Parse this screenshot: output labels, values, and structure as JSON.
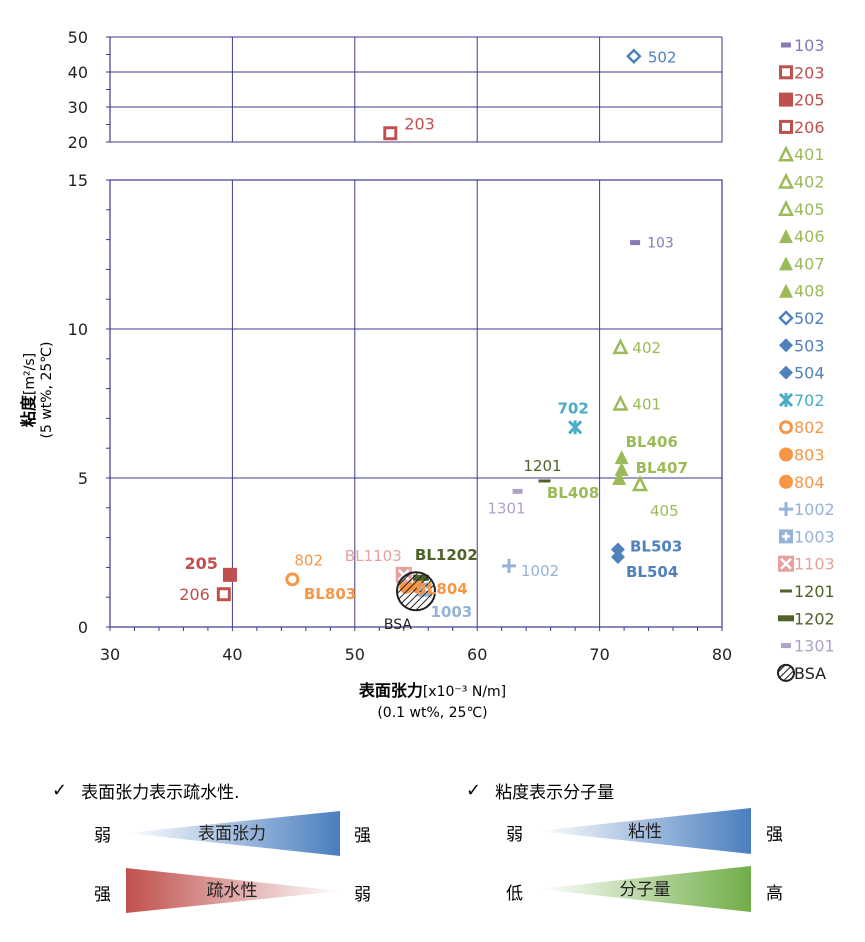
{
  "chart_data": {
    "type": "scatter",
    "y_axis_label_main": "粘度",
    "y_axis_label_unit": "[m²/s]",
    "y_axis_label_cond": "(5 wt%, 25℃)",
    "x_axis_label_main": "表面张力",
    "x_axis_label_unit": "[x10⁻³ N/m]",
    "x_axis_label_cond": "(0.1 wt%, 25℃)",
    "xlim": [
      30,
      80
    ],
    "x_ticks": [
      "30",
      "40",
      "50",
      "60",
      "70",
      "80"
    ],
    "y_lower_lim": [
      0,
      15
    ],
    "y_lower_ticks": [
      "0",
      "5",
      "10",
      "15"
    ],
    "y_upper_lim": [
      20,
      50
    ],
    "y_upper_ticks": [
      "20",
      "30",
      "40",
      "50"
    ],
    "grid": true,
    "legend_position": "right",
    "series": [
      {
        "name": "103",
        "marker": "dash",
        "color": "#8a78b8",
        "x": 72.9,
        "y": 12.9,
        "label": "103"
      },
      {
        "name": "203",
        "marker": "square-open",
        "color": "#c0504d",
        "x": 52.9,
        "y": 22.5,
        "label": "203"
      },
      {
        "name": "205",
        "marker": "square-filled",
        "color": "#c0504d",
        "x": 39.8,
        "y": 1.75,
        "label": "205"
      },
      {
        "name": "206",
        "marker": "square-open",
        "color": "#c0504d",
        "x": 39.3,
        "y": 1.1,
        "label": "206"
      },
      {
        "name": "401",
        "marker": "triangle-open",
        "color": "#9bbb59",
        "x": 71.7,
        "y": 7.5,
        "label": "401"
      },
      {
        "name": "402",
        "marker": "triangle-open",
        "color": "#9bbb59",
        "x": 71.7,
        "y": 9.4,
        "label": "402"
      },
      {
        "name": "405",
        "marker": "triangle-open",
        "color": "#9bbb59",
        "x": 73.3,
        "y": 4.8,
        "label": "405"
      },
      {
        "name": "406",
        "marker": "triangle-filled",
        "color": "#9bbb59",
        "x": 71.8,
        "y": 5.7,
        "label": "BL406"
      },
      {
        "name": "407",
        "marker": "triangle-filled",
        "color": "#9bbb59",
        "x": 71.8,
        "y": 5.3,
        "label": "BL407"
      },
      {
        "name": "408",
        "marker": "triangle-filled",
        "color": "#9bbb59",
        "x": 71.6,
        "y": 5.0,
        "label": "BL408"
      },
      {
        "name": "502",
        "marker": "diamond-open",
        "color": "#4f81bd",
        "x": 72.8,
        "y": 44.5,
        "label": "502"
      },
      {
        "name": "503",
        "marker": "diamond-filled",
        "color": "#4f81bd",
        "x": 71.5,
        "y": 2.6,
        "label": "BL503"
      },
      {
        "name": "504",
        "marker": "diamond-filled",
        "color": "#4f81bd",
        "x": 71.5,
        "y": 2.35,
        "label": "BL504"
      },
      {
        "name": "702",
        "marker": "star",
        "color": "#4bacc6",
        "x": 68.0,
        "y": 6.7,
        "label": "702"
      },
      {
        "name": "802",
        "marker": "circle-open",
        "color": "#f79646",
        "x": 44.9,
        "y": 1.6,
        "label": "802"
      },
      {
        "name": "803",
        "marker": "circle-filled",
        "color": "#f79646",
        "x": 54.2,
        "y": 1.35,
        "label": "BL803"
      },
      {
        "name": "804",
        "marker": "circle-filled",
        "color": "#f79646",
        "x": 55.2,
        "y": 1.35,
        "label": "BL804"
      },
      {
        "name": "1002",
        "marker": "plus",
        "color": "#95b3d7",
        "x": 62.6,
        "y": 2.05,
        "label": "1002"
      },
      {
        "name": "1003",
        "marker": "plus-box",
        "color": "#95b3d7",
        "x": 55.7,
        "y": 1.25,
        "label": "1003"
      },
      {
        "name": "1103",
        "marker": "x-box",
        "color": "#e6a0a0",
        "x": 54.0,
        "y": 1.75,
        "label": "BL1103"
      },
      {
        "name": "1201",
        "marker": "dash-green",
        "color": "#4f6228",
        "x": 65.5,
        "y": 4.9,
        "label": "1201"
      },
      {
        "name": "1202",
        "marker": "dash-green-thick",
        "color": "#4f6228",
        "x": 55.4,
        "y": 1.65,
        "label": "BL1202"
      },
      {
        "name": "1301",
        "marker": "dash",
        "color": "#b2a1c7",
        "x": 63.3,
        "y": 4.55,
        "label": "1301"
      },
      {
        "name": "BSA",
        "marker": "hatched-circle",
        "color": "#222222",
        "x": 55.0,
        "y": 1.2,
        "label": "BSA"
      }
    ]
  },
  "notes": {
    "left": {
      "check": "✓",
      "title": "表面张力表示疏水性.",
      "row1": {
        "left": "弱",
        "middle": "表面张力",
        "right": "强"
      },
      "row2": {
        "left": "强",
        "middle": "疏水性",
        "right": "弱"
      }
    },
    "right": {
      "check": "✓",
      "title": "粘度表示分子量",
      "row1": {
        "left": "弱",
        "middle": "粘性",
        "right": "强"
      },
      "row2": {
        "left": "低",
        "middle": "分子量",
        "right": "高"
      }
    }
  }
}
